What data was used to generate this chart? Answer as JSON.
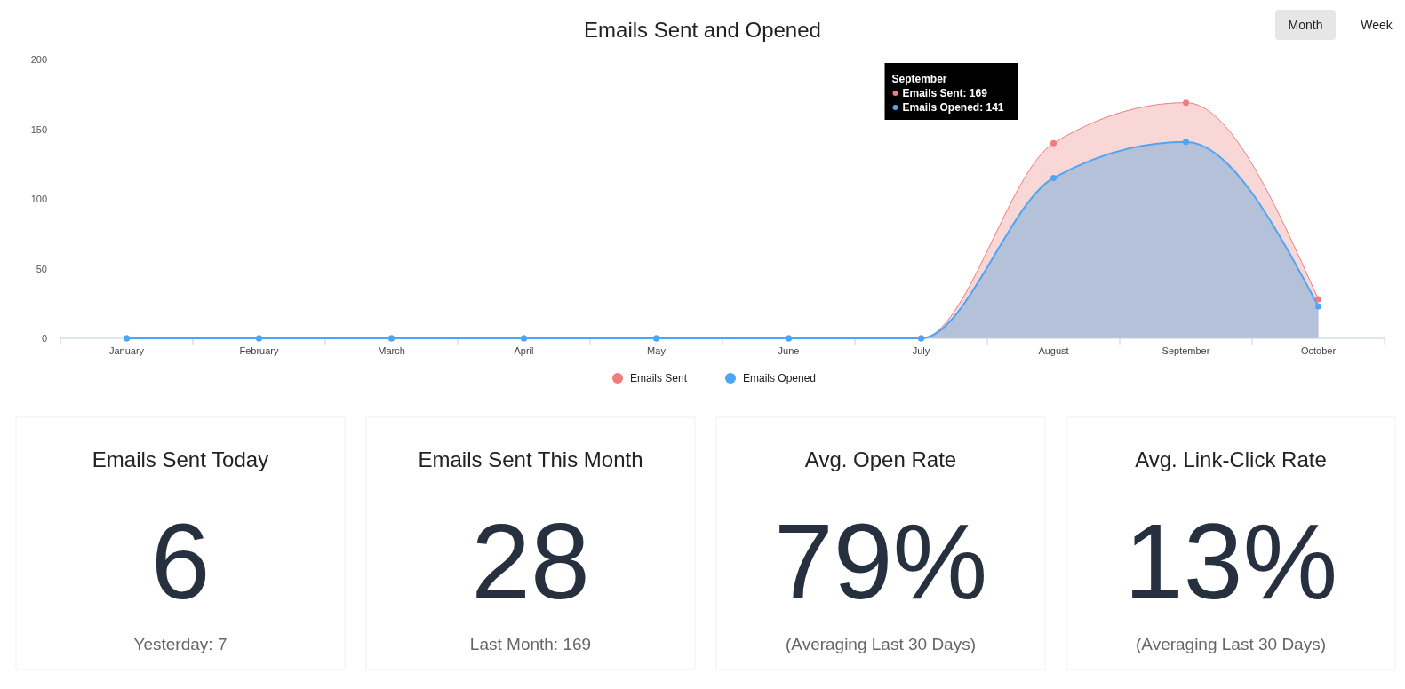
{
  "chart_data": [
    {
      "type": "area",
      "title": "Emails Sent and Opened",
      "categories": [
        "January",
        "February",
        "March",
        "April",
        "May",
        "June",
        "July",
        "August",
        "September",
        "October"
      ],
      "series": [
        {
          "name": "Emails Sent",
          "color": "#f07c7c",
          "values": [
            0,
            0,
            0,
            0,
            0,
            0,
            0,
            140,
            169,
            28
          ]
        },
        {
          "name": "Emails Opened",
          "color": "#4da6f5",
          "values": [
            0,
            0,
            0,
            0,
            0,
            0,
            0,
            115,
            141,
            23
          ]
        }
      ],
      "ylim": [
        0,
        200
      ],
      "yticks": [
        0,
        50,
        100,
        150,
        200
      ],
      "grid": false,
      "legend": "bottom",
      "marker": "circle",
      "annotations": [
        "September",
        "Emails Sent: 169",
        "Emails Opened: 141",
        "Month",
        "Week"
      ]
    },
    {
      "type": "other",
      "title": "Emails Sent Today",
      "annotations": [
        "6",
        "Yesterday: 7"
      ]
    },
    {
      "type": "other",
      "title": "Emails Sent This Month",
      "annotations": [
        "28",
        "Last Month: 169"
      ]
    },
    {
      "type": "other",
      "title": "Avg. Open Rate",
      "annotations": [
        "79%",
        "(Averaging Last 30 Days)"
      ]
    },
    {
      "type": "other",
      "title": "Avg. Link-Click Rate",
      "annotations": [
        "13%",
        "(Averaging Last 30 Days)"
      ]
    }
  ]
}
